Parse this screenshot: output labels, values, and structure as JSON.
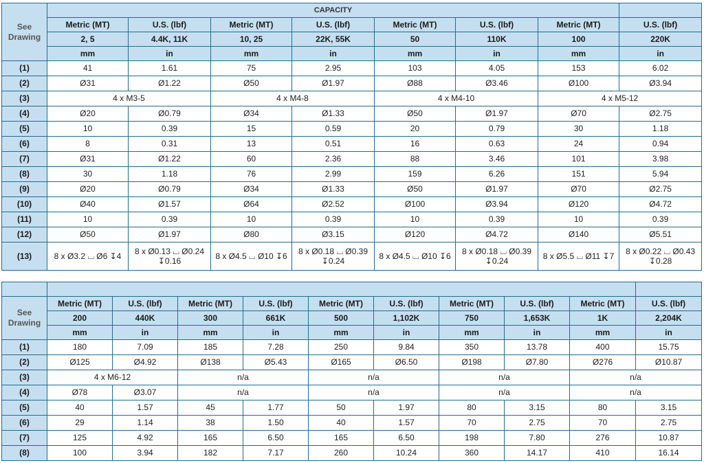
{
  "table1": {
    "capacity_label": "CAPACITY",
    "see_drawing": "See Drawing",
    "col_headers": [
      "Metric (MT)",
      "U.S. (lbf)",
      "Metric (MT)",
      "U.S. (lbf)",
      "Metric (MT)",
      "U.S. (lbf)",
      "Metric (MT)",
      "U.S. (lbf)"
    ],
    "capacities": [
      "2, 5",
      "4.4K, 11K",
      "10, 25",
      "22K, 55K",
      "50",
      "110K",
      "100",
      "220K"
    ],
    "units": [
      "mm",
      "in",
      "mm",
      "in",
      "mm",
      "in",
      "mm",
      "in"
    ],
    "rows": [
      {
        "label": "(1)",
        "cells": [
          "41",
          "1.61",
          "75",
          "2.95",
          "103",
          "4.05",
          "153",
          "6.02"
        ]
      },
      {
        "label": "(2)",
        "cells": [
          "Ø31",
          "Ø1.22",
          "Ø50",
          "Ø1.97",
          "Ø88",
          "Ø3.46",
          "Ø100",
          "Ø3.94"
        ]
      },
      {
        "label": "(3)",
        "merged": [
          "4 x M3-5",
          "4 x M4-8",
          "4 x M4-10",
          "4 x M5-12"
        ]
      },
      {
        "label": "(4)",
        "cells": [
          "Ø20",
          "Ø0.79",
          "Ø34",
          "Ø1.33",
          "Ø50",
          "Ø1.97",
          "Ø70",
          "Ø2.75"
        ]
      },
      {
        "label": "(5)",
        "cells": [
          "10",
          "0.39",
          "15",
          "0.59",
          "20",
          "0.79",
          "30",
          "1.18"
        ]
      },
      {
        "label": "(6)",
        "cells": [
          "8",
          "0.31",
          "13",
          "0.51",
          "16",
          "0.63",
          "24",
          "0.94"
        ]
      },
      {
        "label": "(7)",
        "cells": [
          "Ø31",
          "Ø1.22",
          "60",
          "2.36",
          "88",
          "3.46",
          "101",
          "3.98"
        ]
      },
      {
        "label": "(8)",
        "cells": [
          "30",
          "1.18",
          "76",
          "2.99",
          "159",
          "6.26",
          "151",
          "5.94"
        ]
      },
      {
        "label": "(9)",
        "cells": [
          "Ø20",
          "Ø0.79",
          "Ø34",
          "Ø1.33",
          "Ø50",
          "Ø1.97",
          "Ø70",
          "Ø2.75"
        ]
      },
      {
        "label": "(10)",
        "cells": [
          "Ø40",
          "Ø1.57",
          "Ø64",
          "Ø2.52",
          "Ø100",
          "Ø3.94",
          "Ø120",
          "Ø4.72"
        ]
      },
      {
        "label": "(11)",
        "cells": [
          "10",
          "0.39",
          "10",
          "0.39",
          "10",
          "0.39",
          "10",
          "0.39"
        ]
      },
      {
        "label": "(12)",
        "cells": [
          "Ø50",
          "Ø1.97",
          "Ø80",
          "Ø3.15",
          "Ø120",
          "Ø4.72",
          "Ø140",
          "Ø5.51"
        ]
      },
      {
        "label": "(13)",
        "cells": [
          "8 x Ø3.2 ⌴ Ø6 ↧4",
          "8 x Ø0.13 ⌴ Ø0.24 ↧0.16",
          "8 x Ø4.5 ⌴ Ø10 ↧6",
          "8 x Ø0.18 ⌴ Ø0.39 ↧0.24",
          "8 x Ø4.5 ⌴ Ø10 ↧6",
          "8 x Ø0.18 ⌴ Ø0.39 ↧0.24",
          "8 x Ø5.5 ⌴ Ø11 ↧7",
          "8 x Ø0.22 ⌴ Ø0.43 ↧0.28"
        ]
      }
    ]
  },
  "table2": {
    "see_drawing": "See Drawing",
    "col_headers": [
      "Metric (MT)",
      "U.S. (lbf)",
      "Metric (MT)",
      "U.S. (lbf)",
      "Metric (MT)",
      "U.S. (lbf)",
      "Metric (MT)",
      "U.S. (lbf)",
      "Metric (MT)",
      "U.S. (lbf)"
    ],
    "capacities": [
      "200",
      "440K",
      "300",
      "661K",
      "500",
      "1,102K",
      "750",
      "1,653K",
      "1K",
      "2,204K"
    ],
    "units": [
      "mm",
      "in",
      "mm",
      "in",
      "mm",
      "in",
      "mm",
      "in",
      "mm",
      "in"
    ],
    "rows": [
      {
        "label": "(1)",
        "cells": [
          "180",
          "7.09",
          "185",
          "7.28",
          "250",
          "9.84",
          "350",
          "13.78",
          "400",
          "15.75"
        ]
      },
      {
        "label": "(2)",
        "cells": [
          "Ø125",
          "Ø4.92",
          "Ø138",
          "Ø5.43",
          "Ø165",
          "Ø6.50",
          "Ø198",
          "Ø7.80",
          "Ø276",
          "Ø10.87"
        ]
      },
      {
        "label": "(3)",
        "merged": [
          "4 x M6-12",
          "n/a",
          "n/a",
          "n/a",
          "n/a"
        ]
      },
      {
        "label": "(4)",
        "first": [
          "Ø78",
          "Ø3.07"
        ],
        "merged": [
          "n/a",
          "n/a",
          "n/a",
          "n/a"
        ]
      },
      {
        "label": "(5)",
        "cells": [
          "40",
          "1.57",
          "45",
          "1.77",
          "50",
          "1.97",
          "80",
          "3.15",
          "80",
          "3.15"
        ]
      },
      {
        "label": "(6)",
        "cells": [
          "29",
          "1.14",
          "38",
          "1.50",
          "40",
          "1.57",
          "70",
          "2.75",
          "70",
          "2.75"
        ]
      },
      {
        "label": "(7)",
        "cells": [
          "125",
          "4.92",
          "165",
          "6.50",
          "165",
          "6.50",
          "198",
          "7.80",
          "276",
          "10.87"
        ]
      },
      {
        "label": "(8)",
        "cells": [
          "100",
          "3.94",
          "182",
          "7.17",
          "260",
          "10.24",
          "360",
          "14.17",
          "410",
          "16.14"
        ]
      }
    ]
  }
}
